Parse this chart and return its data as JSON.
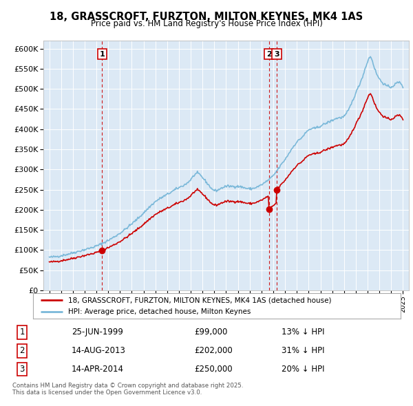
{
  "title": "18, GRASSCROFT, FURZTON, MILTON KEYNES, MK4 1AS",
  "subtitle": "Price paid vs. HM Land Registry's House Price Index (HPI)",
  "hpi_color": "#7ab8d9",
  "price_color": "#cc0000",
  "plot_bg_color": "#dce9f5",
  "transactions": [
    {
      "num": 1,
      "date": "25-JUN-1999",
      "price": 99000,
      "year": 1999.49,
      "pct": "13% ↓ HPI"
    },
    {
      "num": 2,
      "date": "14-AUG-2013",
      "price": 202000,
      "year": 2013.62,
      "pct": "31% ↓ HPI"
    },
    {
      "num": 3,
      "date": "14-APR-2014",
      "price": 250000,
      "year": 2014.29,
      "pct": "20% ↓ HPI"
    }
  ],
  "legend_label_price": "18, GRASSCROFT, FURZTON, MILTON KEYNES, MK4 1AS (detached house)",
  "legend_label_hpi": "HPI: Average price, detached house, Milton Keynes",
  "footer": "Contains HM Land Registry data © Crown copyright and database right 2025.\nThis data is licensed under the Open Government Licence v3.0.",
  "ylim": [
    0,
    620000
  ],
  "yticks": [
    0,
    50000,
    100000,
    150000,
    200000,
    250000,
    300000,
    350000,
    400000,
    450000,
    500000,
    550000,
    600000
  ],
  "xlim": [
    1994.5,
    2025.5
  ]
}
